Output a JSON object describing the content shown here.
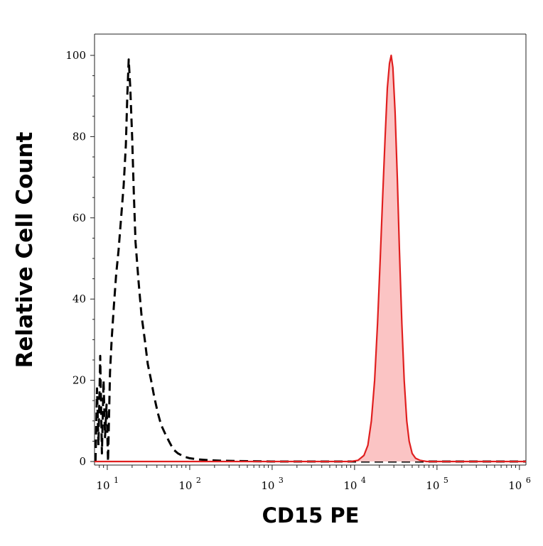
{
  "chart_data": {
    "type": "area",
    "xlabel": "CD15 PE",
    "ylabel": "Relative Cell Count",
    "x_scale": "log",
    "xlim": [
      7,
      1200000
    ],
    "ylim": [
      0,
      100
    ],
    "x_ticks": [
      {
        "value": 10,
        "base": "10",
        "exp": "1"
      },
      {
        "value": 100,
        "base": "10",
        "exp": "2"
      },
      {
        "value": 1000,
        "base": "10",
        "exp": "3"
      },
      {
        "value": 10000,
        "base": "10",
        "exp": "4"
      },
      {
        "value": 100000,
        "base": "10",
        "exp": "5"
      },
      {
        "value": 1000000,
        "base": "10",
        "exp": "6"
      }
    ],
    "y_ticks": [
      {
        "value": 0,
        "label": "0"
      },
      {
        "value": 20,
        "label": "20"
      },
      {
        "value": 40,
        "label": "40"
      },
      {
        "value": 60,
        "label": "60"
      },
      {
        "value": 80,
        "label": "80"
      },
      {
        "value": 100,
        "label": "100"
      }
    ],
    "grid": false,
    "legend": "none",
    "series": [
      {
        "style": "dashed",
        "color": "#000000",
        "fill": false,
        "points": [
          [
            7.2,
            0
          ],
          [
            7.5,
            18
          ],
          [
            7.8,
            4
          ],
          [
            8.2,
            26
          ],
          [
            8.6,
            2
          ],
          [
            9,
            20
          ],
          [
            9.4,
            6
          ],
          [
            9.8,
            14
          ],
          [
            10.2,
            0
          ],
          [
            10.8,
            22
          ],
          [
            11.3,
            30
          ],
          [
            12,
            38
          ],
          [
            12.8,
            46
          ],
          [
            13.7,
            52
          ],
          [
            14.7,
            60
          ],
          [
            15.8,
            68
          ],
          [
            16.8,
            78
          ],
          [
            17.5,
            90
          ],
          [
            18.2,
            99
          ],
          [
            19,
            92
          ],
          [
            20,
            80
          ],
          [
            21,
            66
          ],
          [
            22,
            54
          ],
          [
            24,
            44
          ],
          [
            26,
            36
          ],
          [
            28.5,
            30
          ],
          [
            31,
            24
          ],
          [
            34,
            20
          ],
          [
            37,
            16
          ],
          [
            41,
            12
          ],
          [
            45,
            9
          ],
          [
            50,
            7
          ],
          [
            56,
            5
          ],
          [
            63,
            3
          ],
          [
            72,
            2
          ],
          [
            85,
            1.2
          ],
          [
            100,
            0.8
          ],
          [
            130,
            0.5
          ],
          [
            180,
            0.3
          ],
          [
            250,
            0.2
          ],
          [
            400,
            0.1
          ],
          [
            1000,
            0
          ],
          [
            10000,
            0
          ],
          [
            100000,
            0
          ],
          [
            1200000,
            0
          ]
        ]
      },
      {
        "style": "solid",
        "color": "#e01f1f",
        "fill": "#fbc4c4",
        "points": [
          [
            7,
            0
          ],
          [
            9000,
            0
          ],
          [
            11000,
            0.3
          ],
          [
            13000,
            1.5
          ],
          [
            14500,
            4
          ],
          [
            16000,
            10
          ],
          [
            17500,
            20
          ],
          [
            19000,
            34
          ],
          [
            20500,
            50
          ],
          [
            22000,
            66
          ],
          [
            23500,
            80
          ],
          [
            25000,
            92
          ],
          [
            26500,
            98
          ],
          [
            27800,
            100
          ],
          [
            29200,
            97
          ],
          [
            31000,
            86
          ],
          [
            33000,
            70
          ],
          [
            35000,
            52
          ],
          [
            37500,
            34
          ],
          [
            40000,
            20
          ],
          [
            43000,
            10
          ],
          [
            46000,
            5
          ],
          [
            50000,
            2
          ],
          [
            55000,
            0.8
          ],
          [
            62000,
            0.3
          ],
          [
            75000,
            0
          ],
          [
            1200000,
            0
          ]
        ]
      }
    ]
  }
}
